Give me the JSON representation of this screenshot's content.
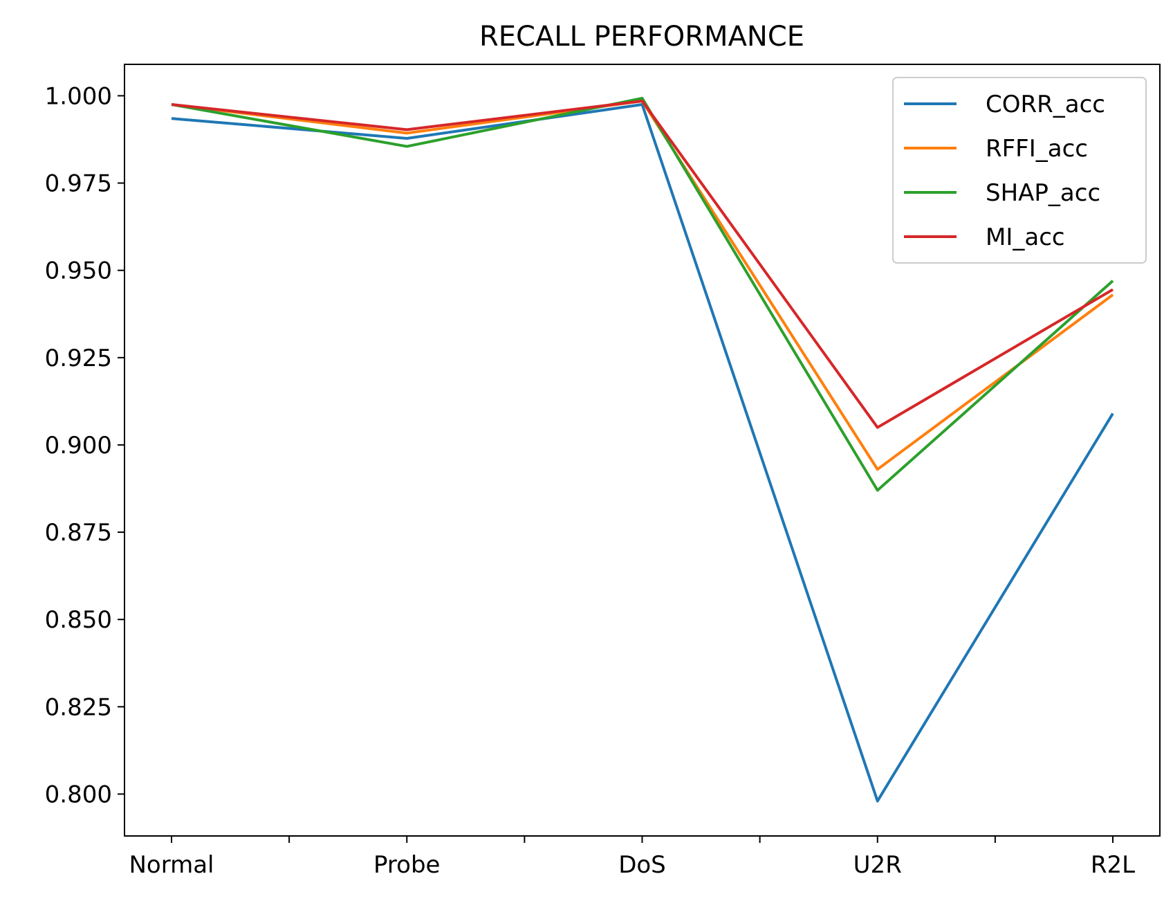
{
  "chart_data": {
    "type": "line",
    "title": "RECALL PERFORMANCE",
    "xlabel": "",
    "ylabel": "",
    "categories": [
      "Normal",
      "Probe",
      "DoS",
      "U2R",
      "R2L"
    ],
    "ylim": [
      0.788,
      1.009
    ],
    "yticks": [
      0.8,
      0.825,
      0.85,
      0.875,
      0.9,
      0.925,
      0.95,
      0.975,
      1.0
    ],
    "ytick_labels": [
      "0.800",
      "0.825",
      "0.850",
      "0.875",
      "0.900",
      "0.925",
      "0.950",
      "0.975",
      "1.000"
    ],
    "minor_xticks": [
      0.5,
      1.5,
      2.5,
      3.5
    ],
    "grid": false,
    "legend_position": "top-right",
    "series": [
      {
        "name": "CORR_acc",
        "color": "#1f77b4",
        "values": [
          0.9935,
          0.9878,
          0.9975,
          0.798,
          0.909
        ]
      },
      {
        "name": "RFFI_acc",
        "color": "#ff7f0e",
        "values": [
          0.9975,
          0.9893,
          0.9985,
          0.893,
          0.943
        ]
      },
      {
        "name": "SHAP_acc",
        "color": "#2ca02c",
        "values": [
          0.9975,
          0.9855,
          0.9993,
          0.887,
          0.947
        ]
      },
      {
        "name": "MI_acc",
        "color": "#d62728",
        "values": [
          0.9975,
          0.9903,
          0.9985,
          0.905,
          0.9445
        ]
      }
    ]
  }
}
